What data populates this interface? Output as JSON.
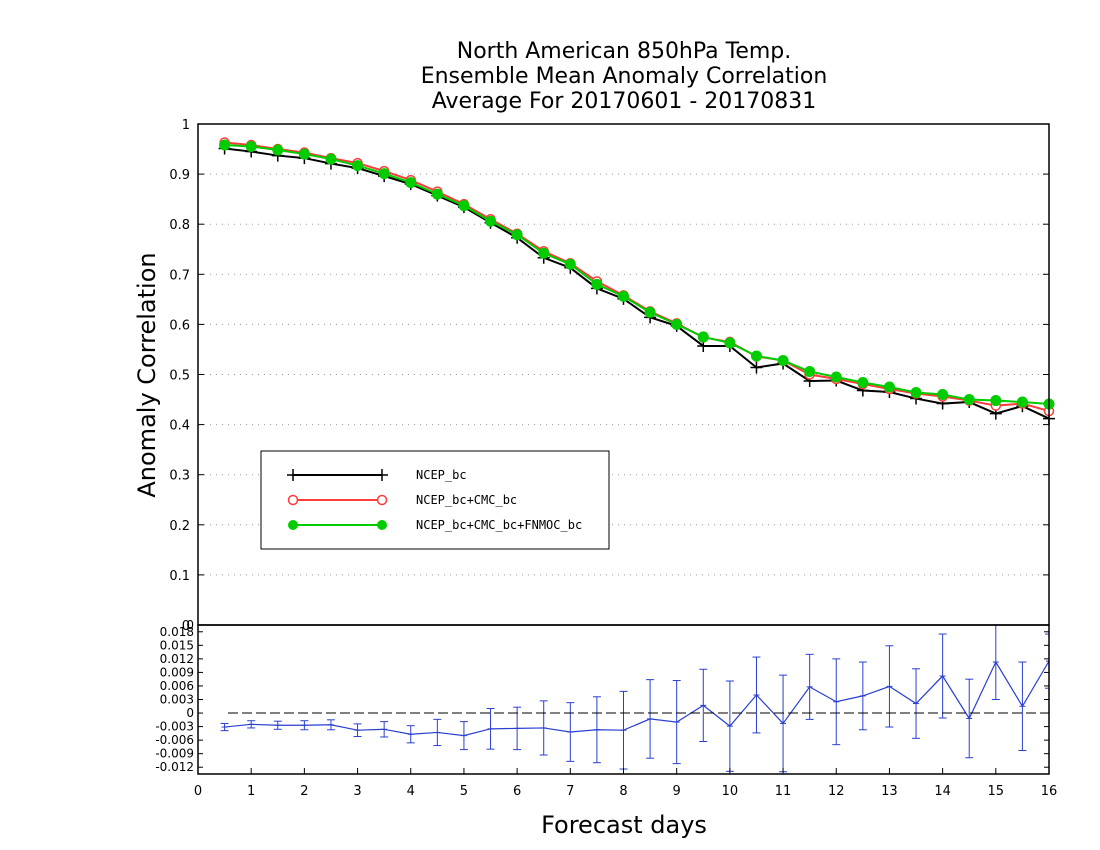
{
  "chart_data": [
    {
      "type": "line",
      "title": [
        "North American 850hPa Temp.",
        "Ensemble Mean Anomaly Correlation",
        "Average For 20170601 - 20170831"
      ],
      "ylabel": "Anomaly Correlation",
      "ylim": [
        0,
        1
      ],
      "yticks": [
        "0",
        "0.1",
        "0.2",
        "0.3",
        "0.4",
        "0.5",
        "0.6",
        "0.7",
        "0.8",
        "0.9",
        "1"
      ],
      "grid": true,
      "legend_position": "lower-left",
      "x": [
        0.5,
        1,
        1.5,
        2,
        2.5,
        3,
        3.5,
        4,
        4.5,
        5,
        5.5,
        6,
        6.5,
        7,
        7.5,
        8,
        8.5,
        9,
        9.5,
        10,
        10.5,
        11,
        11.5,
        12,
        12.5,
        13,
        13.5,
        14,
        14.5,
        15,
        15.5,
        16
      ],
      "series": [
        {
          "name": "NCEP_bc",
          "color": "#000000",
          "marker": "plus",
          "values": [
            0.951,
            0.945,
            0.937,
            0.932,
            0.921,
            0.912,
            0.896,
            0.88,
            0.857,
            0.834,
            0.803,
            0.773,
            0.733,
            0.713,
            0.672,
            0.651,
            0.614,
            0.597,
            0.557,
            0.557,
            0.514,
            0.522,
            0.487,
            0.488,
            0.468,
            0.465,
            0.452,
            0.442,
            0.445,
            0.422,
            0.437,
            0.412
          ]
        },
        {
          "name": "NCEP_bc+CMC_bc",
          "color": "#ff3b3b",
          "marker": "open-circle",
          "values": [
            0.963,
            0.958,
            0.95,
            0.943,
            0.932,
            0.922,
            0.906,
            0.888,
            0.865,
            0.84,
            0.81,
            0.781,
            0.746,
            0.722,
            0.686,
            0.658,
            0.626,
            0.602,
            0.574,
            0.565,
            0.536,
            0.528,
            0.5,
            0.491,
            0.481,
            0.471,
            0.462,
            0.456,
            0.448,
            0.438,
            0.442,
            0.427
          ]
        },
        {
          "name": "NCEP_bc+CMC_bc+FNMOC_bc",
          "color": "#00cc00",
          "marker": "filled-circle",
          "values": [
            0.958,
            0.955,
            0.948,
            0.94,
            0.93,
            0.917,
            0.901,
            0.883,
            0.86,
            0.837,
            0.806,
            0.779,
            0.742,
            0.72,
            0.68,
            0.656,
            0.624,
            0.6,
            0.575,
            0.563,
            0.537,
            0.528,
            0.506,
            0.495,
            0.484,
            0.475,
            0.464,
            0.46,
            0.45,
            0.448,
            0.445,
            0.441
          ]
        }
      ]
    },
    {
      "type": "line",
      "xlabel": "Forecast days",
      "ylim": [
        -0.0135,
        0.0195
      ],
      "yticks": [
        "-0.012",
        "-0.009",
        "-0.006",
        "-0.003",
        "0",
        "0.003",
        "0.006",
        "0.009",
        "0.012",
        "0.015",
        "0.018"
      ],
      "xticks": [
        "0",
        "1",
        "2",
        "3",
        "4",
        "5",
        "6",
        "7",
        "8",
        "9",
        "10",
        "11",
        "12",
        "13",
        "14",
        "15",
        "16"
      ],
      "xlim": [
        0,
        16
      ],
      "x": [
        0.5,
        1,
        1.5,
        2,
        2.5,
        3,
        3.5,
        4,
        4.5,
        5,
        5.5,
        6,
        6.5,
        7,
        7.5,
        8,
        8.5,
        9,
        9.5,
        10,
        10.5,
        11,
        11.5,
        12,
        12.5,
        13,
        13.5,
        14,
        14.5,
        15,
        15.5,
        16
      ],
      "series": [
        {
          "color": "#2a3fd0",
          "marker": "error-bar",
          "values": [
            -0.0031,
            -0.0025,
            -0.0027,
            -0.0027,
            -0.0026,
            -0.0038,
            -0.0036,
            -0.0047,
            -0.0043,
            -0.005,
            -0.0035,
            -0.0034,
            -0.0033,
            -0.0042,
            -0.0037,
            -0.0038,
            -0.0013,
            -0.002,
            0.0017,
            -0.0029,
            0.004,
            -0.0023,
            0.0058,
            0.0025,
            0.0038,
            0.0059,
            0.0021,
            0.0082,
            -0.0012,
            0.0113,
            0.0015,
            0.0115
          ],
          "error": [
            0.0008,
            0.0008,
            0.0009,
            0.001,
            0.0011,
            0.0014,
            0.0017,
            0.0019,
            0.0029,
            0.0031,
            0.0045,
            0.0047,
            0.006,
            0.0065,
            0.0073,
            0.0086,
            0.0087,
            0.0092,
            0.008,
            0.01,
            0.0084,
            0.0107,
            0.0072,
            0.0095,
            0.0075,
            0.009,
            0.0077,
            0.0093,
            0.0087,
            0.0083,
            0.0098,
            0.006
          ]
        }
      ]
    }
  ]
}
